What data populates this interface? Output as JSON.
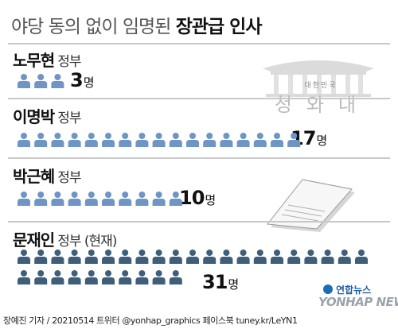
{
  "title": {
    "light": "야당 동의 없이 임명된",
    "bold": "장관급 인사"
  },
  "palace": {
    "caption": "대한민국",
    "name": "청와대"
  },
  "colors": {
    "fill": "#6f95c4",
    "fill_current": "#3f5e7a",
    "rule": "#c8c8c8"
  },
  "chart_data": {
    "type": "pictogram",
    "unit": "명",
    "icon": "person-icon",
    "series": [
      {
        "label": "노무현",
        "suffix": "정부",
        "value": 3,
        "current": false
      },
      {
        "label": "이명박",
        "suffix": "정부",
        "value": 17,
        "current": false
      },
      {
        "label": "박근혜",
        "suffix": "정부",
        "value": 10,
        "current": false
      },
      {
        "label": "문재인",
        "suffix": "정부 (현재)",
        "value": 31,
        "current": true
      }
    ]
  },
  "counts": {
    "roh": "3",
    "lee": "17",
    "park": "10",
    "moon": "31"
  },
  "footer": "장예진 기자 / 20210514 트위터 @yonhap_graphics 페이스북 tuney.kr/LeYN1",
  "logo": {
    "ko": "연합뉴스",
    "en": "YONHAP NEWS"
  }
}
